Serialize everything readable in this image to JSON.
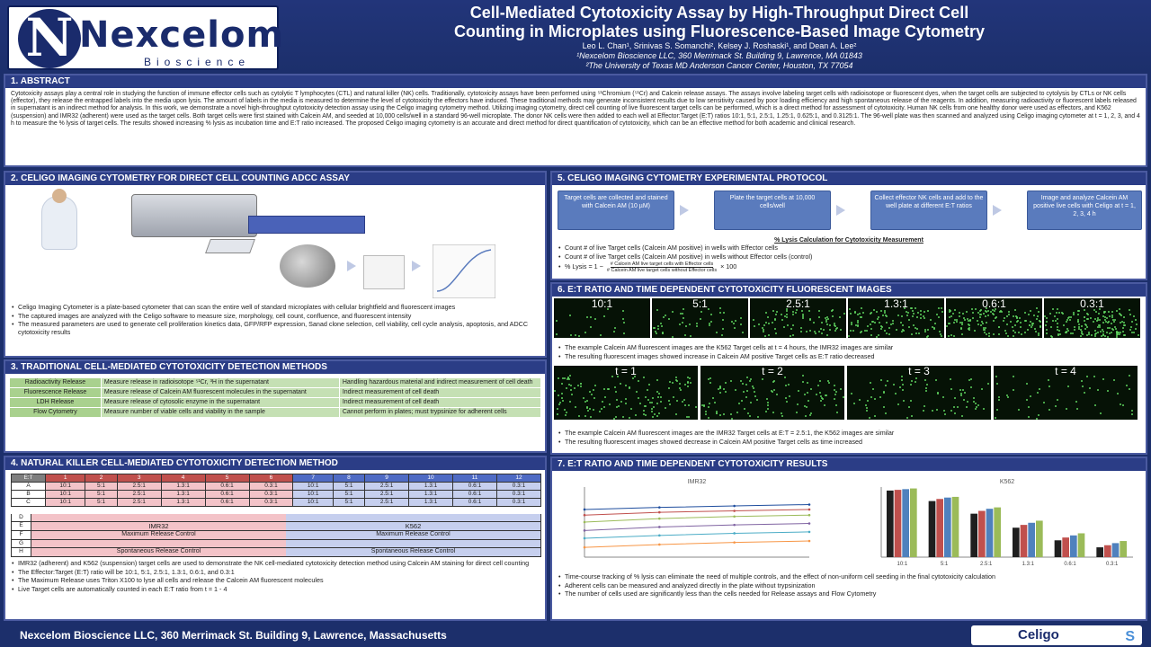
{
  "header": {
    "logo_text": "Nexcelom",
    "logo_letter": "N",
    "logo_subtext": "Bioscience",
    "title_line1": "Cell-Mediated Cytotoxicity Assay by High-Throughput Direct Cell",
    "title_line2": "Counting in Microplates using Fluorescence-Based Image Cytometry",
    "authors": "Leo L. Chan¹, Srinivas S. Somanchi², Kelsey J. Roshaski¹, and Dean A. Lee²",
    "affil1": "¹Nexcelom Bioscience LLC, 360 Merrimack St. Building 9, Lawrence, MA 01843",
    "affil2": "²The University of Texas MD Anderson Cancer Center, Houston, TX 77054"
  },
  "sections": {
    "s1_title": "1. ABSTRACT",
    "s1_text": "Cytotoxicity assays play a central role in studying the function of immune effector cells such as cytolytic T lymphocytes (CTL) and natural killer (NK) cells. Traditionally, cytotoxicity assays have been performed using ⁵¹Chromium (⁵¹Cr) and Calcein release assays. The assays involve labeling target cells with radioisotope or fluorescent dyes, when the target cells are subjected to cytolysis by CTLs or NK cells (effector), they release the entrapped labels into the media upon lysis. The amount of labels in the media is measured to determine the level of cytotoxicity the effectors have induced. These traditional methods may generate inconsistent results due to low sensitivity caused by poor loading efficiency and high spontaneous release of the reagents. In addition, measuring radioactivity or fluorescent labels released in supernatant is an indirect method for analysis. In this work, we demonstrate a novel high-throughput cytotoxicity detection assay using the Celigo imaging cytometry method. Utilizing imaging cytometry, direct cell counting of live fluorescent target cells can be performed, which is a direct method for assessment of cytotoxicity. Human NK cells from one healthy donor were used as effectors, and K562 (suspension) and IMR32 (adherent) were used as the target cells. Both target cells were first stained with Calcein AM, and seeded at 10,000 cells/well in a standard 96-well microplate. The donor NK cells were then added to each well at Effector:Target (E:T) ratios 10:1, 5:1, 2.5:1, 1.25:1, 0.625:1, and 0.3125:1. The 96-well plate was then scanned and analyzed using Celigo imaging cytometer at t = 1, 2, 3, and 4 h to measure the % lysis of target cells. The results showed increasing % lysis as incubation time and E:T ratio increased. The proposed Celigo imaging cytometry is an accurate and direct method for direct quantification of cytotoxicity, which can be an effective method for both academic and clinical research.",
    "s2_title": "2. CELIGO IMAGING CYTOMETRY FOR DIRECT CELL COUNTING ADCC ASSAY",
    "s2_bullets": [
      "Celigo Imaging Cytometer is a plate-based cytometer that can scan the entire well of standard microplates with cellular brightfield and fluorescent images",
      "The captured images are analyzed with the Celigo software to measure size, morphology, cell count, confluence, and fluorescent intensity",
      "The measured parameters are used to generate cell proliferation kinetics data, GFP/RFP expression, Sanad clone selection, cell viability, cell cycle analysis, apoptosis, and ADCC cytotoxicity results"
    ],
    "s3_title": "3. TRADITIONAL CELL-MEDIATED CYTOTOXICITY DETECTION METHODS",
    "s3_rows": [
      {
        "method": "Radioactivity Release",
        "desc": "Measure release in radioisotope ⁵¹Cr, ³H in the supernatant",
        "limit": "Handling hazardous material and indirect measurement of cell death"
      },
      {
        "method": "Fluorescence Release",
        "desc": "Measure release of Calcein AM fluorescent molecules in the supernatant",
        "limit": "Indirect measurement of cell death"
      },
      {
        "method": "LDH Release",
        "desc": "Measure release of cytosolic enzyme in the supernatant",
        "limit": "Indirect measurement of cell death"
      },
      {
        "method": "Flow Cytometry",
        "desc": "Measure number of viable cells and viability in the sample",
        "limit": "Cannot perform in plates; must trypsinize for adherent cells"
      }
    ],
    "s4_title": "4. NATURAL KILLER CELL-MEDIATED CYTOTOXICITY DETECTION METHOD",
    "s4_cols": [
      "E:T",
      "1",
      "2",
      "3",
      "4",
      "5",
      "6",
      "7",
      "8",
      "9",
      "10",
      "11",
      "12"
    ],
    "s4_rows": [
      [
        "A",
        "10:1",
        "5:1",
        "2.5:1",
        "1.3:1",
        "0.6:1",
        "0.3:1",
        "10:1",
        "5:1",
        "2.5:1",
        "1.3:1",
        "0.6:1",
        "0.3:1"
      ],
      [
        "B",
        "10:1",
        "5:1",
        "2.5:1",
        "1.3:1",
        "0.6:1",
        "0.3:1",
        "10:1",
        "5:1",
        "2.5:1",
        "1.3:1",
        "0.6:1",
        "0.3:1"
      ],
      [
        "C",
        "10:1",
        "5:1",
        "2.5:1",
        "1.3:1",
        "0.6:1",
        "0.3:1",
        "10:1",
        "5:1",
        "2.5:1",
        "1.3:1",
        "0.6:1",
        "0.3:1"
      ]
    ],
    "s4_target1": "IMR32",
    "s4_target2": "K562",
    "s4_max_release": "Maximum Release Control",
    "s4_spont_release": "Spontaneous Release Control",
    "s4_row_labels": [
      "D",
      "E",
      "F",
      "G",
      "H"
    ],
    "s4_bullets": [
      "IMR32 (adherent) and K562 (suspension) target cells are used to demonstrate the NK cell-mediated cytotoxicity detection method using Calcein AM staining for direct cell counting",
      "The Effector:Target (E:T) ratio will be 10:1, 5:1, 2.5:1, 1.3:1, 0.6:1, and 0.3:1",
      "The Maximum Release uses Triton X100 to lyse all cells and release the Calcein AM fluorescent molecules",
      "Live Target cells are automatically counted in each E:T ratio from t = 1 - 4"
    ],
    "s5_title": "5. CELIGO IMAGING CYTOMETRY EXPERIMENTAL PROTOCOL",
    "s5_steps": [
      "Target cells are collected and stained with Calcein AM (10 µM)",
      "Plate the target cells at 10,000 cells/well",
      "Collect effector NK cells and add to the well plate at different E:T ratios",
      "Image and analyze Calcein AM positive live cells with Celigo at t = 1, 2, 3, 4 h"
    ],
    "s5_calc_title": "% Lysis Calculation for Cytotoxicity Measurement",
    "s5_bullets": [
      "Count # of live Target cells (Calcein AM positive) in wells with Effector cells",
      "Count # of live Target cells (Calcein AM positive) in wells without Effector cells (control)"
    ],
    "s5_formula_left": "% Lysis = 1 −",
    "s5_formula_num": "# Calcein AM live target cells with Effector cells",
    "s5_formula_den": "# Calcein AM live target cells without Effector cells",
    "s5_formula_right": "× 100",
    "s6_title": "6. E:T RATIO AND TIME DEPENDENT CYTOTOXICITY FLUORESCENT IMAGES",
    "s6_ratios": [
      "10:1",
      "5:1",
      "2.5:1",
      "1.3:1",
      "0.6:1",
      "0.3:1"
    ],
    "s6_bullets1": [
      "The example Calcein AM fluorescent images are the K562 Target cells at t = 4 hours, the IMR32 images are similar",
      "The resulting fluorescent images showed increase in Calcein AM positive Target cells as E:T ratio decreased"
    ],
    "s6_times": [
      "t = 1",
      "t = 2",
      "t = 3",
      "t = 4"
    ],
    "s6_bullets2": [
      "The example Calcein AM fluorescent images are the IMR32 Target cells at E:T = 2.5:1, the K562 images are similar",
      "The resulting fluorescent images showed decrease in Calcein AM positive Target cells as time increased"
    ],
    "s7_title": "7. E:T RATIO AND TIME DEPENDENT CYTOTOXICITY RESULTS",
    "s7_chart1_title": "IMR32",
    "s7_chart2_title": "K562",
    "s7_bullets": [
      "Time-course tracking of % lysis can eliminate the need of multiple controls, and the effect of non-uniform cell seeding in the final cytotoxicity calculation",
      "Adherent cells can be measured and analyzed directly in the plate without trypsinization",
      "The number of cells used are significantly less than the cells needed for Release assays and Flow Cytometry"
    ]
  },
  "footer": {
    "text": "Nexcelom Bioscience LLC, 360 Merrimack St. Building 9, Lawrence, Massachusetts",
    "celigo": "Celigo"
  },
  "colors": {
    "background": "#1c2f6b",
    "section_header": "#2b3d86",
    "fluorescent_green": "#5fd35f",
    "plate_pink": "#f3c3c8",
    "plate_blue": "#c6cfee"
  },
  "chart_data": [
    {
      "type": "line",
      "title": "IMR32",
      "x": [
        1,
        2,
        3,
        4
      ],
      "series": [
        {
          "values": [
            68,
            71,
            73,
            75
          ]
        },
        {
          "values": [
            60,
            64,
            66,
            68
          ]
        },
        {
          "values": [
            50,
            55,
            58,
            60
          ]
        },
        {
          "values": [
            38,
            43,
            46,
            48
          ]
        },
        {
          "values": [
            27,
            31,
            34,
            36
          ]
        },
        {
          "values": [
            14,
            18,
            21,
            23
          ]
        }
      ],
      "ylim": [
        0,
        100
      ]
    },
    {
      "type": "bar",
      "title": "K562",
      "categories": [
        "10:1",
        "5:1",
        "2.5:1",
        "1.3:1",
        "0.6:1",
        "0.3:1"
      ],
      "series": [
        {
          "values": [
            95,
            80,
            62,
            42,
            24,
            14
          ]
        },
        {
          "values": [
            96,
            83,
            66,
            46,
            28,
            17
          ]
        },
        {
          "values": [
            97,
            85,
            69,
            49,
            31,
            20
          ]
        },
        {
          "values": [
            98,
            86,
            71,
            52,
            34,
            23
          ]
        }
      ],
      "ylim": [
        0,
        100
      ]
    }
  ]
}
